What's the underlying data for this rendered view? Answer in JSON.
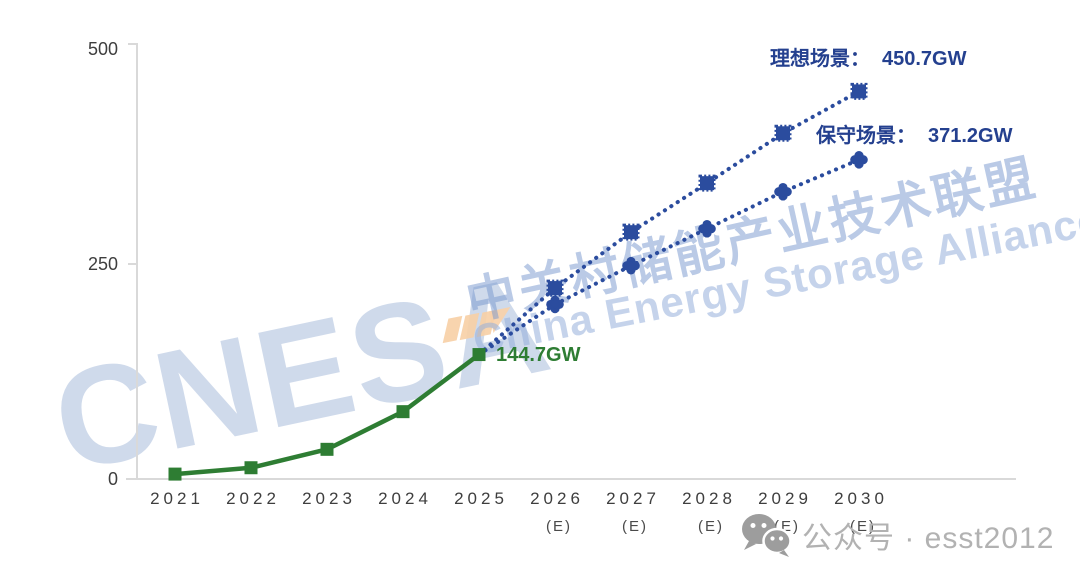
{
  "chart_data": {
    "type": "line",
    "title": "",
    "unit": "GW",
    "categories": [
      "2021",
      "2022",
      "2023",
      "2024",
      "2025",
      "2026",
      "2027",
      "2028",
      "2029",
      "2030"
    ],
    "estimated_suffix": "(E)",
    "estimated_from_index": 5,
    "y_axis": {
      "ticks": [
        0,
        250,
        500
      ],
      "min": 0,
      "max": 500
    },
    "grid": false,
    "legend": "none",
    "series": [
      {
        "id": "actual",
        "color": "#2e7d33",
        "line_style": "solid",
        "marker": "square",
        "x_start_index": 0,
        "values": [
          5.7,
          13.1,
          34.5,
          78.3,
          144.7
        ]
      },
      {
        "id": "ideal",
        "label": "理想场景",
        "color": "#2b4c9e",
        "line_style": "dotted",
        "marker": "square",
        "x_start_index": 4,
        "values": [
          144.7,
          222,
          287,
          344,
          402,
          450.7
        ]
      },
      {
        "id": "conservative",
        "label": "保守场景",
        "color": "#2b4c9e",
        "line_style": "dotted",
        "marker": "clover",
        "x_start_index": 4,
        "values": [
          144.7,
          203,
          248,
          291,
          334,
          371.2
        ]
      }
    ],
    "annotations": {
      "ideal": {
        "label": "理想场景：",
        "value": "450.7GW",
        "color": "#24408f"
      },
      "conservative": {
        "label": "保守场景：",
        "value": "371.2GW",
        "color": "#24408f"
      },
      "current": {
        "value": "144.7GW",
        "color": "#2e7d33"
      }
    }
  },
  "watermark": {
    "logo": "CNESA",
    "cn": "中关村储能产业技术联盟",
    "en": "China Energy Storage Alliance"
  },
  "footer": {
    "wechat_label": "公众号 · esst2012"
  },
  "colors": {
    "actual_green": "#2e7d33",
    "scenario_blue": "#2b4c9e",
    "annotation_blue": "#24408f",
    "axis_gray": "#d9d9d9",
    "text_gray": "#3e3e3e",
    "watermark_blue": "#c3d0e8",
    "logo_orange": "#f7cfa5",
    "footer_gray": "#b2b2b2"
  }
}
